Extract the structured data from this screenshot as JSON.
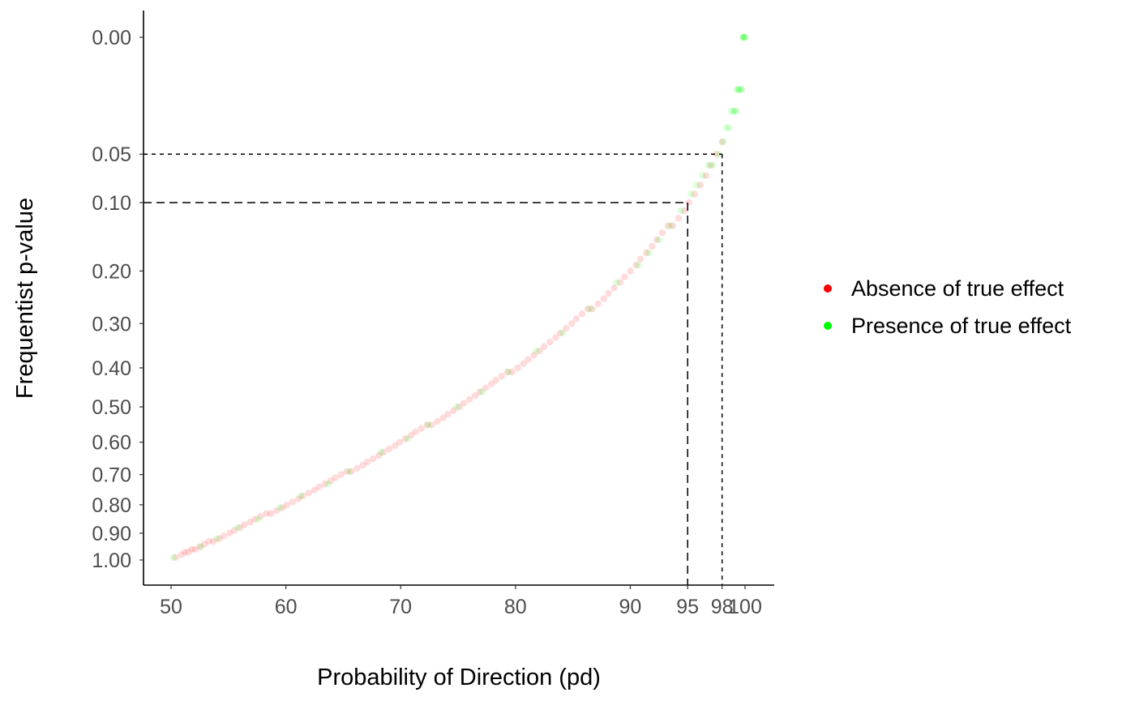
{
  "chart_data": {
    "type": "scatter",
    "title": "",
    "xlabel": "Probability of Direction (pd)",
    "ylabel": "Frequentist p-value",
    "xlim": [
      50,
      100
    ],
    "ylim": [
      0,
      1
    ],
    "y_reversed": true,
    "y_scale": "square-root",
    "x_ticks": [
      50,
      60,
      70,
      80,
      90,
      95,
      98,
      100
    ],
    "x_tick_labels": [
      "50",
      "60",
      "70",
      "80",
      "90",
      "95",
      "98",
      "100"
    ],
    "y_ticks": [
      0.0,
      0.05,
      0.1,
      0.2,
      0.3,
      0.4,
      0.5,
      0.6,
      0.7,
      0.8,
      0.9,
      1.0
    ],
    "y_tick_labels": [
      "0.00",
      "0.05",
      "0.10",
      "0.20",
      "0.30",
      "0.40",
      "0.50",
      "0.60",
      "0.70",
      "0.80",
      "0.90",
      "1.00"
    ],
    "reference_lines": [
      {
        "x": 95,
        "y": 0.1,
        "style": "long-dash"
      },
      {
        "x": 98,
        "y": 0.05,
        "style": "short-dash"
      }
    ],
    "grid": false,
    "legend_position": "right",
    "relationship": "p = 2 * (1 - pd / 100)",
    "series": [
      {
        "name": "Absence of true effect",
        "color": "#ff0000",
        "points": [
          [
            50.4,
            0.99
          ],
          [
            50.9,
            0.98
          ],
          [
            51.2,
            0.97
          ],
          [
            51.5,
            0.97
          ],
          [
            51.8,
            0.96
          ],
          [
            52.1,
            0.96
          ],
          [
            52.5,
            0.95
          ],
          [
            52.9,
            0.94
          ],
          [
            53.3,
            0.93
          ],
          [
            53.7,
            0.93
          ],
          [
            54.2,
            0.92
          ],
          [
            54.6,
            0.91
          ],
          [
            55.1,
            0.9
          ],
          [
            55.5,
            0.89
          ],
          [
            56.0,
            0.88
          ],
          [
            56.4,
            0.87
          ],
          [
            56.9,
            0.86
          ],
          [
            57.3,
            0.85
          ],
          [
            57.8,
            0.84
          ],
          [
            58.3,
            0.83
          ],
          [
            58.7,
            0.83
          ],
          [
            59.2,
            0.82
          ],
          [
            59.7,
            0.81
          ],
          [
            60.1,
            0.8
          ],
          [
            60.6,
            0.79
          ],
          [
            61.1,
            0.78
          ],
          [
            61.5,
            0.77
          ],
          [
            62.0,
            0.76
          ],
          [
            62.5,
            0.75
          ],
          [
            62.9,
            0.74
          ],
          [
            63.4,
            0.73
          ],
          [
            63.9,
            0.72
          ],
          [
            64.3,
            0.71
          ],
          [
            64.8,
            0.7
          ],
          [
            65.3,
            0.69
          ],
          [
            65.7,
            0.69
          ],
          [
            66.2,
            0.68
          ],
          [
            66.7,
            0.67
          ],
          [
            67.1,
            0.66
          ],
          [
            67.6,
            0.65
          ],
          [
            68.1,
            0.64
          ],
          [
            68.5,
            0.63
          ],
          [
            69.0,
            0.62
          ],
          [
            69.5,
            0.61
          ],
          [
            69.9,
            0.6
          ],
          [
            70.4,
            0.59
          ],
          [
            70.9,
            0.58
          ],
          [
            71.3,
            0.57
          ],
          [
            71.8,
            0.56
          ],
          [
            72.3,
            0.55
          ],
          [
            72.7,
            0.55
          ],
          [
            73.2,
            0.54
          ],
          [
            73.7,
            0.53
          ],
          [
            74.1,
            0.52
          ],
          [
            74.6,
            0.51
          ],
          [
            75.1,
            0.5
          ],
          [
            75.5,
            0.49
          ],
          [
            76.0,
            0.48
          ],
          [
            76.5,
            0.47
          ],
          [
            76.9,
            0.46
          ],
          [
            77.4,
            0.45
          ],
          [
            77.9,
            0.44
          ],
          [
            78.3,
            0.43
          ],
          [
            78.8,
            0.42
          ],
          [
            79.3,
            0.41
          ],
          [
            79.7,
            0.41
          ],
          [
            80.2,
            0.4
          ],
          [
            80.7,
            0.39
          ],
          [
            81.1,
            0.38
          ],
          [
            81.6,
            0.37
          ],
          [
            82.1,
            0.36
          ],
          [
            82.5,
            0.35
          ],
          [
            83.0,
            0.34
          ],
          [
            83.5,
            0.33
          ],
          [
            83.9,
            0.32
          ],
          [
            84.4,
            0.31
          ],
          [
            84.9,
            0.3
          ],
          [
            85.3,
            0.29
          ],
          [
            85.8,
            0.28
          ],
          [
            86.3,
            0.27
          ],
          [
            86.7,
            0.27
          ],
          [
            87.2,
            0.26
          ],
          [
            87.7,
            0.25
          ],
          [
            88.1,
            0.24
          ],
          [
            88.6,
            0.23
          ],
          [
            89.1,
            0.22
          ],
          [
            89.5,
            0.21
          ],
          [
            90.0,
            0.2
          ],
          [
            90.5,
            0.19
          ],
          [
            90.9,
            0.18
          ],
          [
            91.4,
            0.17
          ],
          [
            91.9,
            0.16
          ],
          [
            92.3,
            0.15
          ],
          [
            92.8,
            0.14
          ],
          [
            93.3,
            0.13
          ],
          [
            93.7,
            0.13
          ],
          [
            94.2,
            0.12
          ],
          [
            94.7,
            0.11
          ],
          [
            95.1,
            0.1
          ],
          [
            95.6,
            0.09
          ],
          [
            96.1,
            0.08
          ],
          [
            96.6,
            0.07
          ],
          [
            97.0,
            0.06
          ],
          [
            97.5,
            0.05
          ],
          [
            98.0,
            0.04
          ]
        ]
      },
      {
        "name": "Presence of true effect",
        "color": "#00ff00",
        "points": [
          [
            50.2,
            0.99
          ],
          [
            52.6,
            0.95
          ],
          [
            54.0,
            0.92
          ],
          [
            55.8,
            0.88
          ],
          [
            57.6,
            0.85
          ],
          [
            59.5,
            0.81
          ],
          [
            61.3,
            0.77
          ],
          [
            63.7,
            0.73
          ],
          [
            65.5,
            0.69
          ],
          [
            68.3,
            0.63
          ],
          [
            70.6,
            0.59
          ],
          [
            72.4,
            0.55
          ],
          [
            74.9,
            0.5
          ],
          [
            77.1,
            0.46
          ],
          [
            79.4,
            0.41
          ],
          [
            81.8,
            0.36
          ],
          [
            84.1,
            0.32
          ],
          [
            86.5,
            0.27
          ],
          [
            88.8,
            0.22
          ],
          [
            90.7,
            0.19
          ],
          [
            91.6,
            0.17
          ],
          [
            92.5,
            0.15
          ],
          [
            93.5,
            0.13
          ],
          [
            94.4,
            0.11
          ],
          [
            95.3,
            0.09
          ],
          [
            95.8,
            0.08
          ],
          [
            96.3,
            0.07
          ],
          [
            96.8,
            0.06
          ],
          [
            97.2,
            0.06
          ],
          [
            97.7,
            0.05
          ],
          [
            98.1,
            0.04
          ],
          [
            98.4,
            0.03
          ],
          [
            98.6,
            0.03
          ],
          [
            98.8,
            0.02
          ],
          [
            99.0,
            0.02
          ],
          [
            99.1,
            0.02
          ],
          [
            99.2,
            0.02
          ],
          [
            99.3,
            0.01
          ],
          [
            99.4,
            0.01
          ],
          [
            99.5,
            0.01
          ],
          [
            99.6,
            0.01
          ],
          [
            99.7,
            0.01
          ],
          [
            99.8,
            0.0
          ],
          [
            99.85,
            0.0
          ],
          [
            99.9,
            0.0
          ],
          [
            99.95,
            0.0
          ],
          [
            100.0,
            0.0
          ]
        ]
      }
    ]
  }
}
